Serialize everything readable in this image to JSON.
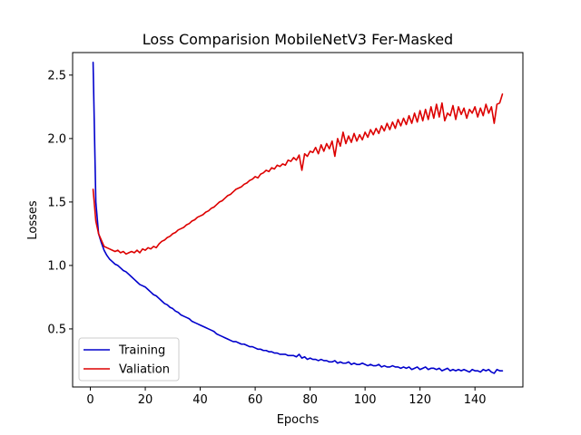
{
  "chart_data": {
    "type": "line",
    "title": "Loss Comparision MobileNetV3 Fer-Masked",
    "xlabel": "Epochs",
    "ylabel": "Losses",
    "xlim": [
      -6.45,
      157.45
    ],
    "ylim": [
      0.0425,
      2.6775
    ],
    "xticks": [
      0,
      20,
      40,
      60,
      80,
      100,
      120,
      140
    ],
    "yticks": [
      0.5,
      1.0,
      1.5,
      2.0,
      2.5
    ],
    "xtick_labels": [
      "0",
      "20",
      "40",
      "60",
      "80",
      "100",
      "120",
      "140"
    ],
    "ytick_labels": [
      "0.5",
      "1.0",
      "1.5",
      "2.0",
      "2.5"
    ],
    "grid": false,
    "legend_position": "lower-left",
    "series": [
      {
        "name": "Training",
        "color": "#0000cc",
        "x": [
          1,
          2,
          3,
          4,
          5,
          6,
          7,
          8,
          9,
          10,
          11,
          12,
          13,
          14,
          15,
          16,
          17,
          18,
          19,
          20,
          21,
          22,
          23,
          24,
          25,
          26,
          27,
          28,
          29,
          30,
          31,
          32,
          33,
          34,
          35,
          36,
          37,
          38,
          39,
          40,
          41,
          42,
          43,
          44,
          45,
          46,
          47,
          48,
          49,
          50,
          51,
          52,
          53,
          54,
          55,
          56,
          57,
          58,
          59,
          60,
          61,
          62,
          63,
          64,
          65,
          66,
          67,
          68,
          69,
          70,
          71,
          72,
          73,
          74,
          75,
          76,
          77,
          78,
          79,
          80,
          81,
          82,
          83,
          84,
          85,
          86,
          87,
          88,
          89,
          90,
          91,
          92,
          93,
          94,
          95,
          96,
          97,
          98,
          99,
          100,
          101,
          102,
          103,
          104,
          105,
          106,
          107,
          108,
          109,
          110,
          111,
          112,
          113,
          114,
          115,
          116,
          117,
          118,
          119,
          120,
          121,
          122,
          123,
          124,
          125,
          126,
          127,
          128,
          129,
          130,
          131,
          132,
          133,
          134,
          135,
          136,
          137,
          138,
          139,
          140,
          141,
          142,
          143,
          144,
          145,
          146,
          147,
          148,
          149,
          150
        ],
        "values": [
          2.6,
          1.5,
          1.25,
          1.18,
          1.12,
          1.08,
          1.05,
          1.03,
          1.01,
          1.0,
          0.98,
          0.96,
          0.95,
          0.93,
          0.91,
          0.89,
          0.87,
          0.85,
          0.84,
          0.83,
          0.81,
          0.79,
          0.77,
          0.76,
          0.74,
          0.72,
          0.7,
          0.69,
          0.67,
          0.66,
          0.64,
          0.63,
          0.61,
          0.6,
          0.59,
          0.58,
          0.56,
          0.55,
          0.54,
          0.53,
          0.52,
          0.51,
          0.5,
          0.49,
          0.48,
          0.46,
          0.45,
          0.44,
          0.43,
          0.42,
          0.41,
          0.4,
          0.4,
          0.39,
          0.38,
          0.38,
          0.37,
          0.36,
          0.36,
          0.35,
          0.34,
          0.34,
          0.33,
          0.33,
          0.32,
          0.32,
          0.31,
          0.31,
          0.3,
          0.3,
          0.3,
          0.29,
          0.29,
          0.29,
          0.28,
          0.3,
          0.27,
          0.28,
          0.26,
          0.27,
          0.26,
          0.26,
          0.25,
          0.26,
          0.25,
          0.25,
          0.24,
          0.24,
          0.25,
          0.23,
          0.24,
          0.23,
          0.23,
          0.24,
          0.22,
          0.23,
          0.22,
          0.22,
          0.23,
          0.22,
          0.21,
          0.22,
          0.21,
          0.21,
          0.22,
          0.2,
          0.21,
          0.2,
          0.2,
          0.21,
          0.2,
          0.2,
          0.19,
          0.2,
          0.19,
          0.2,
          0.18,
          0.19,
          0.2,
          0.18,
          0.19,
          0.2,
          0.18,
          0.19,
          0.19,
          0.18,
          0.19,
          0.17,
          0.18,
          0.19,
          0.17,
          0.18,
          0.17,
          0.18,
          0.17,
          0.18,
          0.17,
          0.16,
          0.18,
          0.17,
          0.17,
          0.16,
          0.18,
          0.17,
          0.18,
          0.16,
          0.15,
          0.18,
          0.17,
          0.17
        ]
      },
      {
        "name": "Valiation",
        "color": "#dd0000",
        "x": [
          1,
          2,
          3,
          4,
          5,
          6,
          7,
          8,
          9,
          10,
          11,
          12,
          13,
          14,
          15,
          16,
          17,
          18,
          19,
          20,
          21,
          22,
          23,
          24,
          25,
          26,
          27,
          28,
          29,
          30,
          31,
          32,
          33,
          34,
          35,
          36,
          37,
          38,
          39,
          40,
          41,
          42,
          43,
          44,
          45,
          46,
          47,
          48,
          49,
          50,
          51,
          52,
          53,
          54,
          55,
          56,
          57,
          58,
          59,
          60,
          61,
          62,
          63,
          64,
          65,
          66,
          67,
          68,
          69,
          70,
          71,
          72,
          73,
          74,
          75,
          76,
          77,
          78,
          79,
          80,
          81,
          82,
          83,
          84,
          85,
          86,
          87,
          88,
          89,
          90,
          91,
          92,
          93,
          94,
          95,
          96,
          97,
          98,
          99,
          100,
          101,
          102,
          103,
          104,
          105,
          106,
          107,
          108,
          109,
          110,
          111,
          112,
          113,
          114,
          115,
          116,
          117,
          118,
          119,
          120,
          121,
          122,
          123,
          124,
          125,
          126,
          127,
          128,
          129,
          130,
          131,
          132,
          133,
          134,
          135,
          136,
          137,
          138,
          139,
          140,
          141,
          142,
          143,
          144,
          145,
          146,
          147,
          148,
          149,
          150
        ],
        "values": [
          1.6,
          1.35,
          1.25,
          1.2,
          1.15,
          1.14,
          1.13,
          1.12,
          1.11,
          1.12,
          1.1,
          1.11,
          1.09,
          1.1,
          1.11,
          1.1,
          1.12,
          1.1,
          1.13,
          1.12,
          1.14,
          1.13,
          1.15,
          1.14,
          1.17,
          1.19,
          1.2,
          1.22,
          1.23,
          1.25,
          1.26,
          1.28,
          1.29,
          1.3,
          1.32,
          1.33,
          1.35,
          1.36,
          1.38,
          1.39,
          1.4,
          1.42,
          1.43,
          1.45,
          1.46,
          1.48,
          1.5,
          1.51,
          1.53,
          1.55,
          1.56,
          1.58,
          1.6,
          1.61,
          1.62,
          1.64,
          1.65,
          1.67,
          1.68,
          1.7,
          1.69,
          1.72,
          1.73,
          1.75,
          1.74,
          1.77,
          1.76,
          1.79,
          1.78,
          1.8,
          1.79,
          1.83,
          1.82,
          1.85,
          1.83,
          1.87,
          1.75,
          1.88,
          1.86,
          1.9,
          1.89,
          1.93,
          1.88,
          1.95,
          1.9,
          1.96,
          1.92,
          1.98,
          1.86,
          2.0,
          1.94,
          2.05,
          1.96,
          2.02,
          1.97,
          2.04,
          1.98,
          2.03,
          1.99,
          2.05,
          2.01,
          2.07,
          2.03,
          2.08,
          2.04,
          2.1,
          2.06,
          2.12,
          2.07,
          2.13,
          2.08,
          2.15,
          2.1,
          2.16,
          2.11,
          2.18,
          2.12,
          2.2,
          2.13,
          2.22,
          2.14,
          2.23,
          2.15,
          2.25,
          2.16,
          2.27,
          2.17,
          2.28,
          2.14,
          2.2,
          2.18,
          2.26,
          2.15,
          2.25,
          2.19,
          2.24,
          2.16,
          2.23,
          2.2,
          2.25,
          2.17,
          2.24,
          2.18,
          2.27,
          2.2,
          2.25,
          2.12,
          2.27,
          2.28,
          2.35
        ]
      }
    ]
  }
}
